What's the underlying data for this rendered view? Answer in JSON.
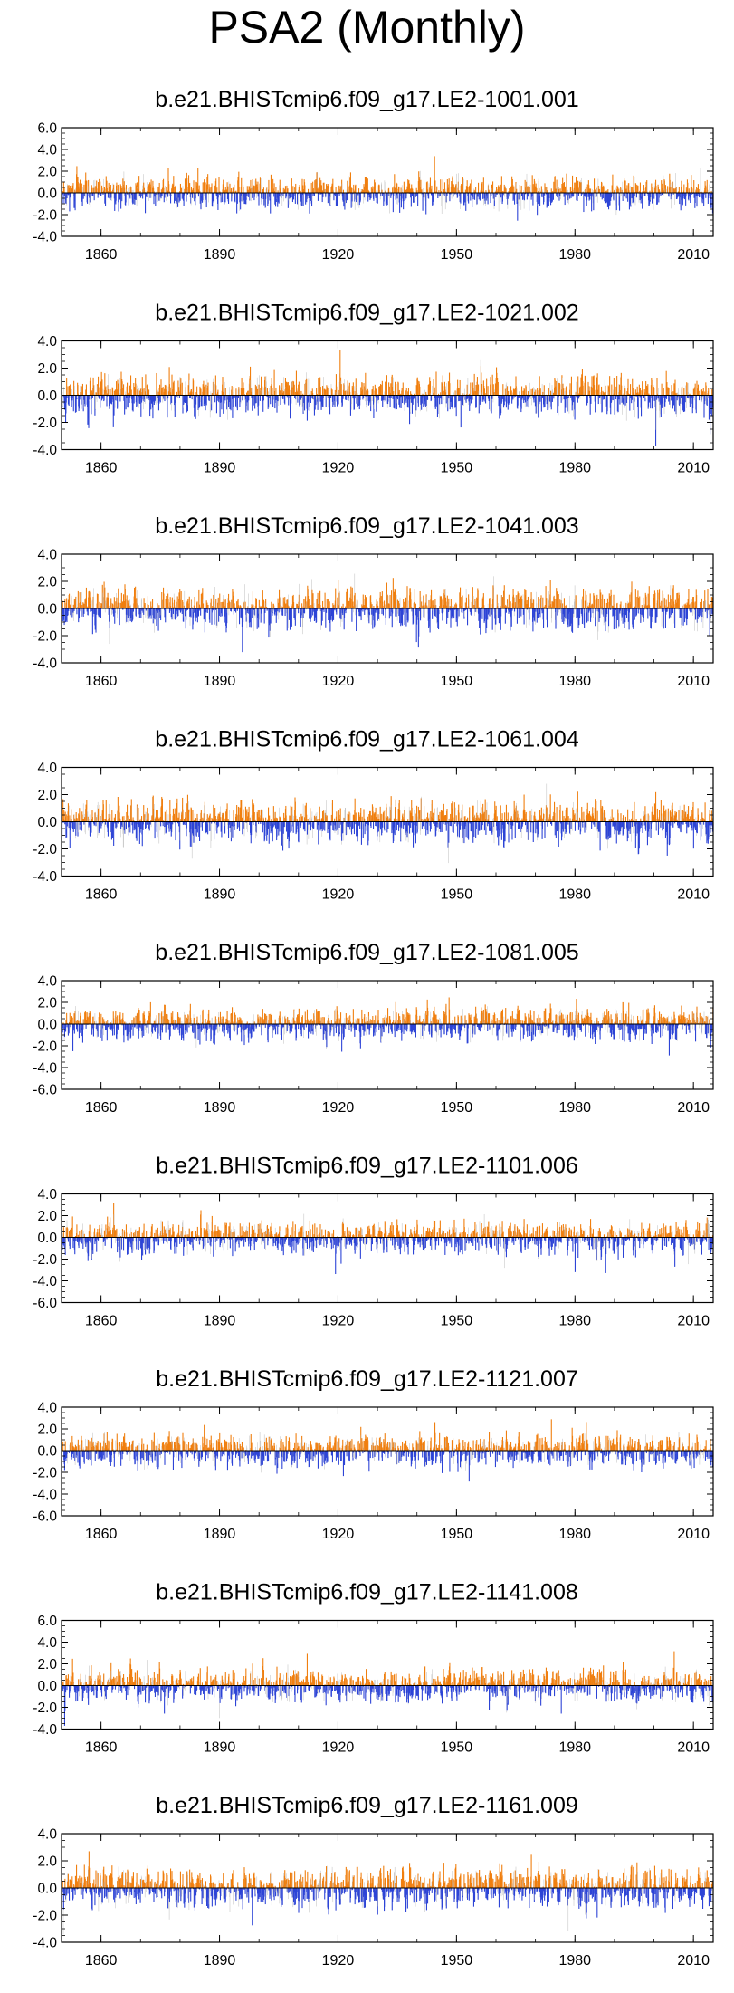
{
  "page": {
    "title": "PSA2 (Monthly)"
  },
  "colors": {
    "positive": "#f07f0f",
    "negative": "#2d44d6",
    "axis": "#000000",
    "faint": "#bdbdbd"
  },
  "chart_data": [
    {
      "type": "bar",
      "title": "b.e21.BHISTcmip6.f09_g17.LE2-1001.001",
      "xlim": [
        1850,
        2015
      ],
      "ylim": [
        -4.0,
        6.0
      ],
      "yticks": [
        "6.0",
        "4.0",
        "2.0",
        "0.0",
        "-2.0",
        "-4.0"
      ],
      "xticks": [
        "1860",
        "1890",
        "1920",
        "1950",
        "1980",
        "2010"
      ],
      "seed": 11
    },
    {
      "type": "bar",
      "title": "b.e21.BHISTcmip6.f09_g17.LE2-1021.002",
      "xlim": [
        1850,
        2015
      ],
      "ylim": [
        -4.0,
        4.0
      ],
      "yticks": [
        "4.0",
        "2.0",
        "0.0",
        "-2.0",
        "-4.0"
      ],
      "xticks": [
        "1860",
        "1890",
        "1920",
        "1950",
        "1980",
        "2010"
      ],
      "seed": 23
    },
    {
      "type": "bar",
      "title": "b.e21.BHISTcmip6.f09_g17.LE2-1041.003",
      "xlim": [
        1850,
        2015
      ],
      "ylim": [
        -4.0,
        4.0
      ],
      "yticks": [
        "4.0",
        "2.0",
        "0.0",
        "-2.0",
        "-4.0"
      ],
      "xticks": [
        "1860",
        "1890",
        "1920",
        "1950",
        "1980",
        "2010"
      ],
      "seed": 37
    },
    {
      "type": "bar",
      "title": "b.e21.BHISTcmip6.f09_g17.LE2-1061.004",
      "xlim": [
        1850,
        2015
      ],
      "ylim": [
        -4.0,
        4.0
      ],
      "yticks": [
        "4.0",
        "2.0",
        "0.0",
        "-2.0",
        "-4.0"
      ],
      "xticks": [
        "1860",
        "1890",
        "1920",
        "1950",
        "1980",
        "2010"
      ],
      "seed": 41
    },
    {
      "type": "bar",
      "title": "b.e21.BHISTcmip6.f09_g17.LE2-1081.005",
      "xlim": [
        1850,
        2015
      ],
      "ylim": [
        -6.0,
        4.0
      ],
      "yticks": [
        "4.0",
        "2.0",
        "0.0",
        "-2.0",
        "-4.0",
        "-6.0"
      ],
      "xticks": [
        "1860",
        "1890",
        "1920",
        "1950",
        "1980",
        "2010"
      ],
      "seed": 53
    },
    {
      "type": "bar",
      "title": "b.e21.BHISTcmip6.f09_g17.LE2-1101.006",
      "xlim": [
        1850,
        2015
      ],
      "ylim": [
        -6.0,
        4.0
      ],
      "yticks": [
        "4.0",
        "2.0",
        "0.0",
        "-2.0",
        "-4.0",
        "-6.0"
      ],
      "xticks": [
        "1860",
        "1890",
        "1920",
        "1950",
        "1980",
        "2010"
      ],
      "seed": 67
    },
    {
      "type": "bar",
      "title": "b.e21.BHISTcmip6.f09_g17.LE2-1121.007",
      "xlim": [
        1850,
        2015
      ],
      "ylim": [
        -6.0,
        4.0
      ],
      "yticks": [
        "4.0",
        "2.0",
        "0.0",
        "-2.0",
        "-4.0",
        "-6.0"
      ],
      "xticks": [
        "1860",
        "1890",
        "1920",
        "1950",
        "1980",
        "2010"
      ],
      "seed": 71
    },
    {
      "type": "bar",
      "title": "b.e21.BHISTcmip6.f09_g17.LE2-1141.008",
      "xlim": [
        1850,
        2015
      ],
      "ylim": [
        -4.0,
        6.0
      ],
      "yticks": [
        "6.0",
        "4.0",
        "2.0",
        "0.0",
        "-2.0",
        "-4.0"
      ],
      "xticks": [
        "1860",
        "1890",
        "1920",
        "1950",
        "1980",
        "2010"
      ],
      "seed": 83
    },
    {
      "type": "bar",
      "title": "b.e21.BHISTcmip6.f09_g17.LE2-1161.009",
      "xlim": [
        1850,
        2015
      ],
      "ylim": [
        -4.0,
        4.0
      ],
      "yticks": [
        "4.0",
        "2.0",
        "0.0",
        "-2.0",
        "-4.0"
      ],
      "xticks": [
        "1860",
        "1890",
        "1920",
        "1950",
        "1980",
        "2010"
      ],
      "seed": 97
    }
  ]
}
